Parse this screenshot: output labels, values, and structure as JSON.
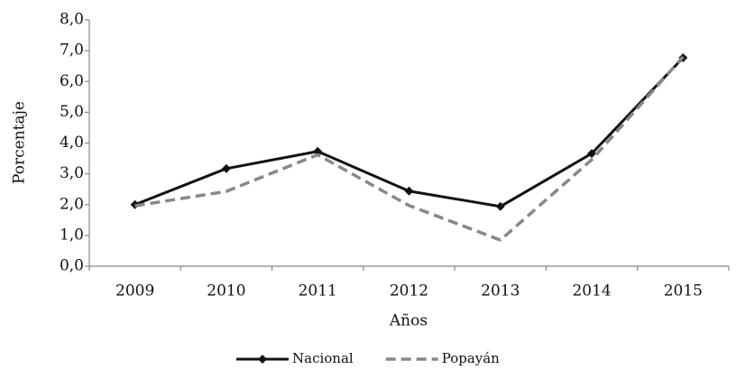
{
  "chart_data": {
    "type": "line",
    "x_label": "Años",
    "y_label": "Porcentaje",
    "categories": [
      "2009",
      "2010",
      "2011",
      "2012",
      "2013",
      "2014",
      "2015"
    ],
    "series": [
      {
        "name": "Nacional",
        "color": "#111111",
        "dash": false,
        "marker": "diamond",
        "values": [
          2.0,
          3.17,
          3.73,
          2.44,
          1.94,
          3.66,
          6.77
        ]
      },
      {
        "name": "Popayán",
        "color": "#888888",
        "dash": true,
        "marker": "none",
        "values": [
          1.96,
          2.43,
          3.62,
          1.97,
          0.85,
          3.46,
          6.8
        ]
      }
    ],
    "ylim": [
      0,
      8
    ],
    "yticks": [
      {
        "value": 0,
        "label": "0,0"
      },
      {
        "value": 1,
        "label": "1,0"
      },
      {
        "value": 2,
        "label": "2,0"
      },
      {
        "value": 3,
        "label": "3,0"
      },
      {
        "value": 4,
        "label": "4,0"
      },
      {
        "value": 5,
        "label": "5,0"
      },
      {
        "value": 6,
        "label": "6,0"
      },
      {
        "value": 7,
        "label": "7,0"
      },
      {
        "value": 8,
        "label": "8,0"
      }
    ],
    "grid": false,
    "legend": "bottom"
  }
}
